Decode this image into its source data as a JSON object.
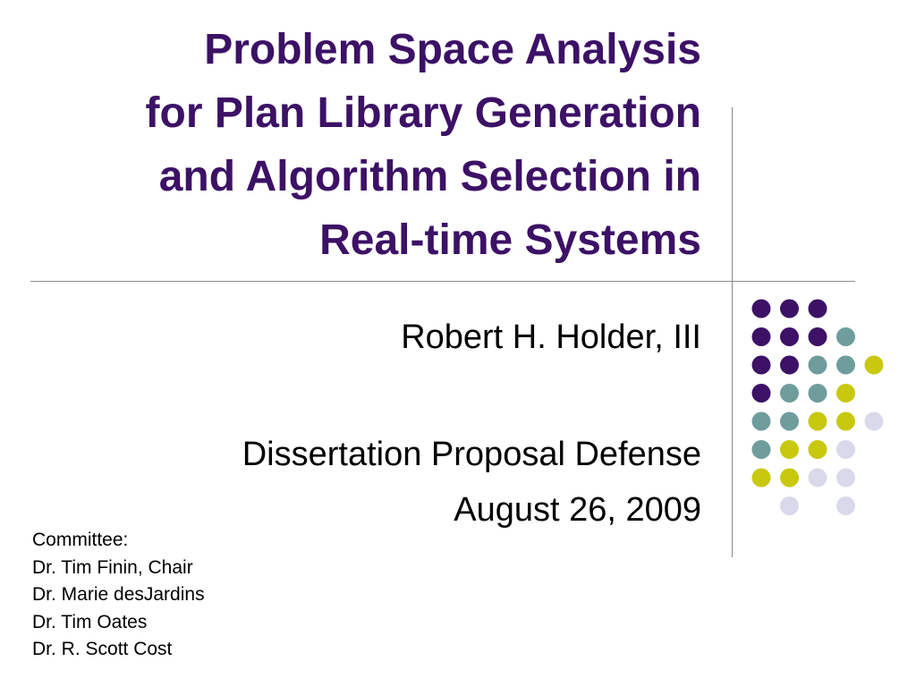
{
  "slide": {
    "title_lines": [
      "Problem Space Analysis",
      "for Plan Library Generation",
      "and Algorithm Selection in",
      "Real-time Systems"
    ],
    "author": "Robert H. Holder, III",
    "event": "Dissertation Proposal Defense",
    "date": "August 26, 2009",
    "committee": {
      "heading": "Committee:",
      "members": [
        "Dr. Tim Finin, Chair",
        "Dr. Marie desJardins",
        "Dr. Tim Oates",
        "Dr. R. Scott Cost"
      ]
    }
  },
  "colors": {
    "title": "#3c1166",
    "purple": "#3c1166",
    "teal": "#6f9c9c",
    "olive": "#c8c80e",
    "lavender": "#d9d9eb",
    "rule": "#8a8a8a"
  },
  "dot_grid": [
    [
      "purple",
      "purple",
      "purple",
      "",
      ""
    ],
    [
      "purple",
      "purple",
      "purple",
      "teal",
      ""
    ],
    [
      "purple",
      "purple",
      "teal",
      "teal",
      "olive"
    ],
    [
      "purple",
      "teal",
      "teal",
      "olive",
      ""
    ],
    [
      "teal",
      "teal",
      "olive",
      "olive",
      "lavender"
    ],
    [
      "teal",
      "olive",
      "olive",
      "lavender",
      ""
    ],
    [
      "olive",
      "olive",
      "lavender",
      "lavender",
      ""
    ],
    [
      "",
      "lavender",
      "",
      "lavender",
      ""
    ]
  ]
}
